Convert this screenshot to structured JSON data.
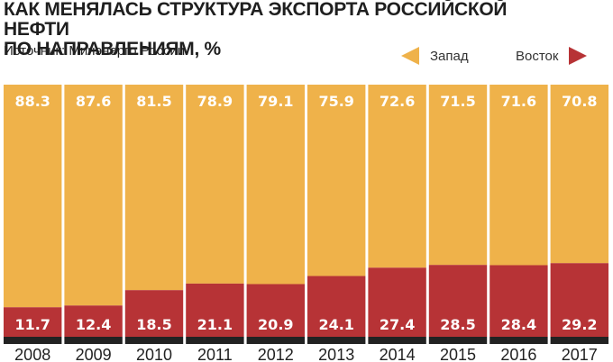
{
  "title_line1": "КАК МЕНЯЛАСЬ СТРУКТУРА ЭКСПОРТА РОССИЙСКОЙ НЕФТИ",
  "title_line2": "ПО НАПРАВЛЕНИЯМ, %",
  "source": "Источник: Минэнерго России",
  "colors": {
    "west": "#efb24a",
    "east": "#b73336",
    "axis": "#222222",
    "label_text": "#ffffff"
  },
  "chart_data": {
    "type": "bar",
    "stacked": true,
    "categories": [
      "2008",
      "2009",
      "2010",
      "2011",
      "2012",
      "2013",
      "2014",
      "2015",
      "2016",
      "2017"
    ],
    "series": [
      {
        "name": "Восток",
        "values": [
          11.7,
          12.4,
          18.5,
          21.1,
          20.9,
          24.1,
          27.4,
          28.5,
          28.4,
          29.2
        ]
      },
      {
        "name": "Запад",
        "values": [
          88.3,
          87.6,
          81.5,
          78.9,
          79.1,
          75.9,
          72.6,
          71.5,
          71.6,
          70.8
        ]
      }
    ],
    "ylim": [
      0,
      100
    ],
    "legend": [
      {
        "label": "Запад",
        "icon": "triangle-left-icon"
      },
      {
        "label": "Восток",
        "icon": "triangle-right-icon"
      }
    ],
    "legend_position": "top-right",
    "grid": false
  }
}
